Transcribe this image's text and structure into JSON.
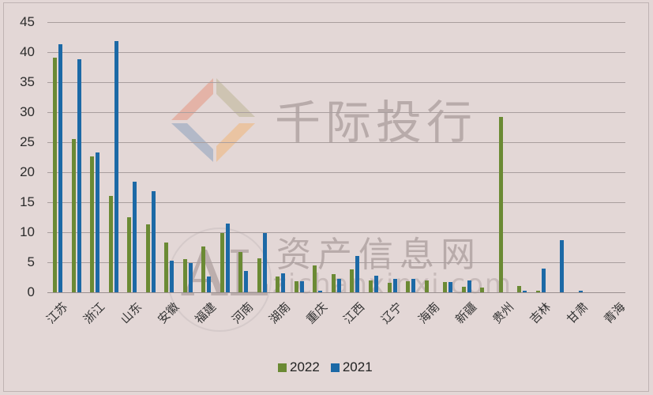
{
  "chart_data": {
    "type": "bar",
    "title": "",
    "xlabel": "",
    "ylabel": "",
    "ylim": [
      0,
      45
    ],
    "yticks": [
      0,
      5,
      10,
      15,
      20,
      25,
      30,
      35,
      40,
      45
    ],
    "grid": true,
    "legend_position": "bottom",
    "categories": [
      "江苏",
      "",
      "浙江",
      "",
      "山东",
      "",
      "安徽",
      "",
      "福建",
      "",
      "河南",
      "",
      "湖南",
      "",
      "重庆",
      "",
      "江西",
      "",
      "辽宁",
      "",
      "海南",
      "",
      "新疆",
      "",
      "贵州",
      "",
      "吉林",
      "",
      "甘肃",
      "",
      "青海"
    ],
    "series": [
      {
        "name": "2022",
        "color": "#6b8a34",
        "values": [
          39.1,
          25.5,
          22.6,
          16.0,
          12.5,
          11.3,
          8.3,
          5.5,
          7.6,
          9.9,
          6.7,
          5.7,
          2.6,
          1.8,
          4.5,
          3.0,
          3.8,
          2.0,
          1.6,
          1.8,
          2.0,
          1.7,
          0.9,
          0.8,
          29.2,
          1.0,
          0.3,
          0,
          0,
          0,
          0
        ]
      },
      {
        "name": "2021",
        "color": "#1c69a6",
        "values": [
          41.3,
          38.8,
          23.3,
          41.8,
          18.4,
          16.8,
          5.3,
          4.9,
          2.6,
          11.4,
          3.6,
          9.9,
          3.1,
          1.9,
          0.3,
          2.2,
          6.0,
          2.7,
          2.3,
          2.2,
          0,
          1.7,
          2.0,
          0,
          0,
          0.2,
          3.9,
          8.7,
          0.3,
          0,
          0
        ]
      }
    ]
  },
  "legend": {
    "items": [
      {
        "label": "2022",
        "color": "#6b8a34"
      },
      {
        "label": "2021",
        "color": "#1c69a6"
      }
    ]
  },
  "watermarks": {
    "brand_cn": "千际投行",
    "site_cn": "资产信息网",
    "logo_text": "AL",
    "url": "zichanxinxi.com"
  }
}
